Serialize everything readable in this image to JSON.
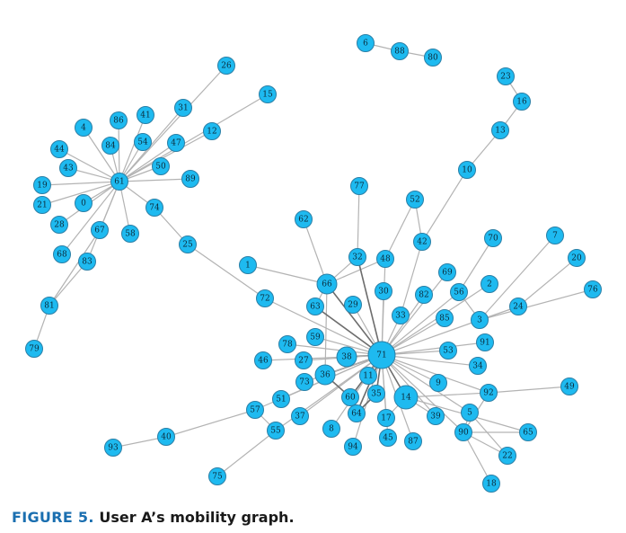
{
  "caption": {
    "label": "FIGURE 5.",
    "text": "User A’s mobility graph."
  },
  "colors": {
    "node_fill": "#1ebaf0",
    "node_stroke": "#2a7fa6",
    "edge": "#b3b3b3",
    "caption_label": "#1b6fb0"
  },
  "graph": {
    "nodes": [
      "6",
      "88",
      "80",
      "26",
      "15",
      "31",
      "86",
      "41",
      "4",
      "12",
      "54",
      "47",
      "84",
      "44",
      "43",
      "50",
      "89",
      "19",
      "61",
      "0",
      "21",
      "74",
      "28",
      "67",
      "58",
      "68",
      "83",
      "81",
      "79",
      "25",
      "1",
      "72",
      "23",
      "16",
      "13",
      "10",
      "77",
      "52",
      "62",
      "42",
      "70",
      "7",
      "20",
      "32",
      "48",
      "66",
      "69",
      "2",
      "56",
      "30",
      "82",
      "76",
      "24",
      "63",
      "29",
      "33",
      "85",
      "3",
      "59",
      "78",
      "71",
      "53",
      "91",
      "27",
      "38",
      "46",
      "34",
      "73",
      "36",
      "11",
      "9",
      "92",
      "49",
      "51",
      "60",
      "35",
      "14",
      "57",
      "64",
      "37",
      "17",
      "5",
      "39",
      "8",
      "45",
      "87",
      "90",
      "65",
      "55",
      "40",
      "93",
      "94",
      "22",
      "18",
      "75"
    ],
    "edges": [
      [
        "6",
        "88"
      ],
      [
        "88",
        "80"
      ],
      [
        "61",
        "26"
      ],
      [
        "61",
        "31"
      ],
      [
        "61",
        "86"
      ],
      [
        "61",
        "41"
      ],
      [
        "61",
        "4"
      ],
      [
        "61",
        "12"
      ],
      [
        "61",
        "54"
      ],
      [
        "61",
        "47"
      ],
      [
        "61",
        "84"
      ],
      [
        "61",
        "44"
      ],
      [
        "61",
        "43"
      ],
      [
        "61",
        "50"
      ],
      [
        "61",
        "89"
      ],
      [
        "61",
        "19"
      ],
      [
        "61",
        "0"
      ],
      [
        "61",
        "21"
      ],
      [
        "61",
        "74"
      ],
      [
        "61",
        "28"
      ],
      [
        "61",
        "67"
      ],
      [
        "61",
        "58"
      ],
      [
        "61",
        "68"
      ],
      [
        "61",
        "83"
      ],
      [
        "61",
        "15"
      ],
      [
        "67",
        "81"
      ],
      [
        "83",
        "81"
      ],
      [
        "81",
        "79"
      ],
      [
        "74",
        "25"
      ],
      [
        "25",
        "72"
      ],
      [
        "1",
        "66"
      ],
      [
        "72",
        "71"
      ],
      [
        "23",
        "16"
      ],
      [
        "16",
        "13"
      ],
      [
        "13",
        "10"
      ],
      [
        "10",
        "42"
      ],
      [
        "42",
        "33"
      ],
      [
        "52",
        "42"
      ],
      [
        "52",
        "48"
      ],
      [
        "77",
        "32"
      ],
      [
        "62",
        "66"
      ],
      [
        "66",
        "71"
      ],
      [
        "66",
        "32"
      ],
      [
        "66",
        "48"
      ],
      [
        "66",
        "63"
      ],
      [
        "66",
        "36"
      ],
      [
        "32",
        "71"
      ],
      [
        "48",
        "71"
      ],
      [
        "30",
        "71"
      ],
      [
        "29",
        "71"
      ],
      [
        "33",
        "71"
      ],
      [
        "82",
        "71"
      ],
      [
        "85",
        "71"
      ],
      [
        "69",
        "71"
      ],
      [
        "70",
        "56"
      ],
      [
        "56",
        "71"
      ],
      [
        "2",
        "71"
      ],
      [
        "7",
        "3"
      ],
      [
        "20",
        "24"
      ],
      [
        "76",
        "3"
      ],
      [
        "24",
        "3"
      ],
      [
        "3",
        "71"
      ],
      [
        "3",
        "56"
      ],
      [
        "91",
        "71"
      ],
      [
        "53",
        "71"
      ],
      [
        "34",
        "71"
      ],
      [
        "9",
        "71"
      ],
      [
        "92",
        "71"
      ],
      [
        "49",
        "92"
      ],
      [
        "92",
        "14"
      ],
      [
        "92",
        "90"
      ],
      [
        "5",
        "71"
      ],
      [
        "5",
        "90"
      ],
      [
        "39",
        "71"
      ],
      [
        "90",
        "71"
      ],
      [
        "90",
        "65"
      ],
      [
        "90",
        "22"
      ],
      [
        "90",
        "18"
      ],
      [
        "65",
        "14"
      ],
      [
        "22",
        "5"
      ],
      [
        "14",
        "71"
      ],
      [
        "17",
        "71"
      ],
      [
        "45",
        "71"
      ],
      [
        "87",
        "71"
      ],
      [
        "35",
        "71"
      ],
      [
        "11",
        "71"
      ],
      [
        "60",
        "71"
      ],
      [
        "64",
        "71"
      ],
      [
        "94",
        "71"
      ],
      [
        "8",
        "71"
      ],
      [
        "38",
        "71"
      ],
      [
        "36",
        "71"
      ],
      [
        "27",
        "71"
      ],
      [
        "59",
        "71"
      ],
      [
        "78",
        "71"
      ],
      [
        "46",
        "38"
      ],
      [
        "73",
        "71"
      ],
      [
        "51",
        "71"
      ],
      [
        "57",
        "71"
      ],
      [
        "37",
        "71"
      ],
      [
        "55",
        "71"
      ],
      [
        "57",
        "55"
      ],
      [
        "40",
        "57"
      ],
      [
        "93",
        "40"
      ],
      [
        "75",
        "55"
      ],
      [
        "63",
        "71"
      ],
      [
        "14",
        "39"
      ],
      [
        "14",
        "17"
      ],
      [
        "36",
        "60"
      ],
      [
        "64",
        "35"
      ]
    ]
  }
}
